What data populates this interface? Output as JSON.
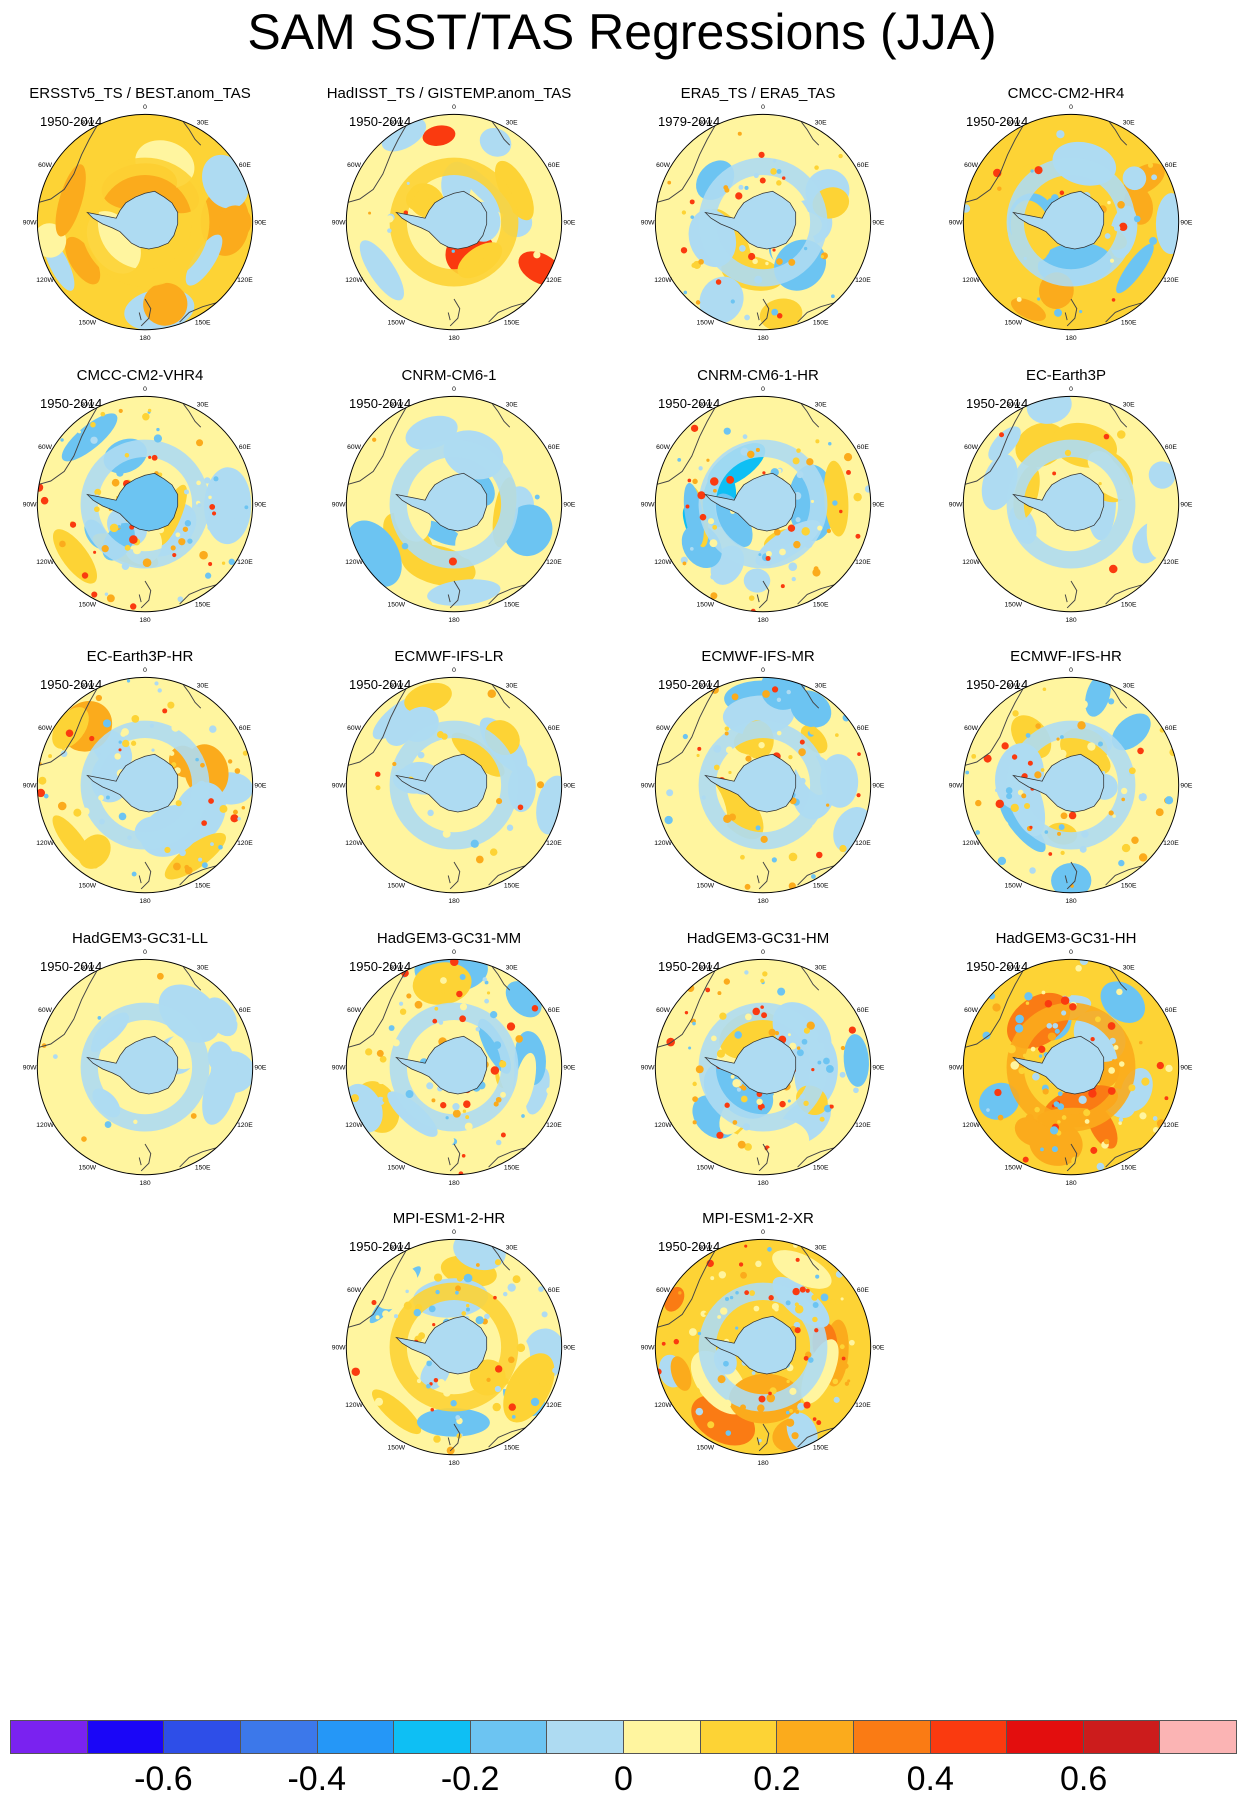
{
  "title": "SAM SST/TAS Regressions (JJA)",
  "map_labels": {
    "lon_labels": [
      "0",
      "30E",
      "60E",
      "90E",
      "120E",
      "150E",
      "180",
      "150W",
      "120W",
      "90W",
      "60W",
      "30W"
    ]
  },
  "panels": [
    {
      "title": "ERSSTv5_TS / BEST.anom_TAS",
      "period": "1950-2014"
    },
    {
      "title": "HadISST_TS / GISTEMP.anom_TAS",
      "period": "1950-2014"
    },
    {
      "title": "ERA5_TS / ERA5_TAS",
      "period": "1979-2014"
    },
    {
      "title": "CMCC-CM2-HR4",
      "period": "1950-2014"
    },
    {
      "title": "CMCC-CM2-VHR4",
      "period": "1950-2014"
    },
    {
      "title": "CNRM-CM6-1",
      "period": "1950-2014"
    },
    {
      "title": "CNRM-CM6-1-HR",
      "period": "1950-2014"
    },
    {
      "title": "EC-Earth3P",
      "period": "1950-2014"
    },
    {
      "title": "EC-Earth3P-HR",
      "period": "1950-2014"
    },
    {
      "title": "ECMWF-IFS-LR",
      "period": "1950-2014"
    },
    {
      "title": "ECMWF-IFS-MR",
      "period": "1950-2014"
    },
    {
      "title": "ECMWF-IFS-HR",
      "period": "1950-2014"
    },
    {
      "title": "HadGEM3-GC31-LL",
      "period": "1950-2014"
    },
    {
      "title": "HadGEM3-GC31-MM",
      "period": "1950-2014"
    },
    {
      "title": "HadGEM3-GC31-HM",
      "period": "1950-2014"
    },
    {
      "title": "HadGEM3-GC31-HH",
      "period": "1950-2014"
    },
    {
      "title": "MPI-ESM1-2-HR",
      "period": "1950-2014"
    },
    {
      "title": "MPI-ESM1-2-XR",
      "period": "1950-2014"
    }
  ],
  "colorbar": {
    "colors": [
      "#7a22f0",
      "#1a06f7",
      "#2e4ee8",
      "#3c78ea",
      "#2597f7",
      "#0ebff4",
      "#6cc4f2",
      "#aedbf2",
      "#fff59f",
      "#fdd335",
      "#fbab1c",
      "#fa7b14",
      "#fa3a0f",
      "#e30e0e",
      "#cc1c1c",
      "#fbb4b4"
    ],
    "tick_labels": [
      "-0.6",
      "-0.4",
      "-0.2",
      "0",
      "0.2",
      "0.4",
      "0.6"
    ],
    "tick_after_box": [
      2,
      4,
      6,
      8,
      10,
      12,
      14
    ]
  },
  "chart_data": {
    "type": "heatmap",
    "title": "SAM SST/TAS Regressions (JJA)",
    "projection": "south polar stereographic",
    "subplots": [
      "ERSSTv5_TS / BEST.anom_TAS",
      "HadISST_TS / GISTEMP.anom_TAS",
      "ERA5_TS / ERA5_TAS",
      "CMCC-CM2-HR4",
      "CMCC-CM2-VHR4",
      "CNRM-CM6-1",
      "CNRM-CM6-1-HR",
      "EC-Earth3P",
      "EC-Earth3P-HR",
      "ECMWF-IFS-LR",
      "ECMWF-IFS-MR",
      "ECMWF-IFS-HR",
      "HadGEM3-GC31-LL",
      "HadGEM3-GC31-MM",
      "HadGEM3-GC31-HM",
      "HadGEM3-GC31-HH",
      "MPI-ESM1-2-HR",
      "MPI-ESM1-2-XR"
    ],
    "colorbar_levels": [
      -0.7,
      -0.6,
      -0.5,
      -0.4,
      -0.3,
      -0.2,
      -0.1,
      0,
      0.1,
      0.2,
      0.3,
      0.4,
      0.5,
      0.6,
      0.7
    ],
    "colorbar_ticks": [
      -0.6,
      -0.4,
      -0.2,
      0,
      0.2,
      0.4,
      0.6
    ],
    "legend_position": "bottom"
  }
}
